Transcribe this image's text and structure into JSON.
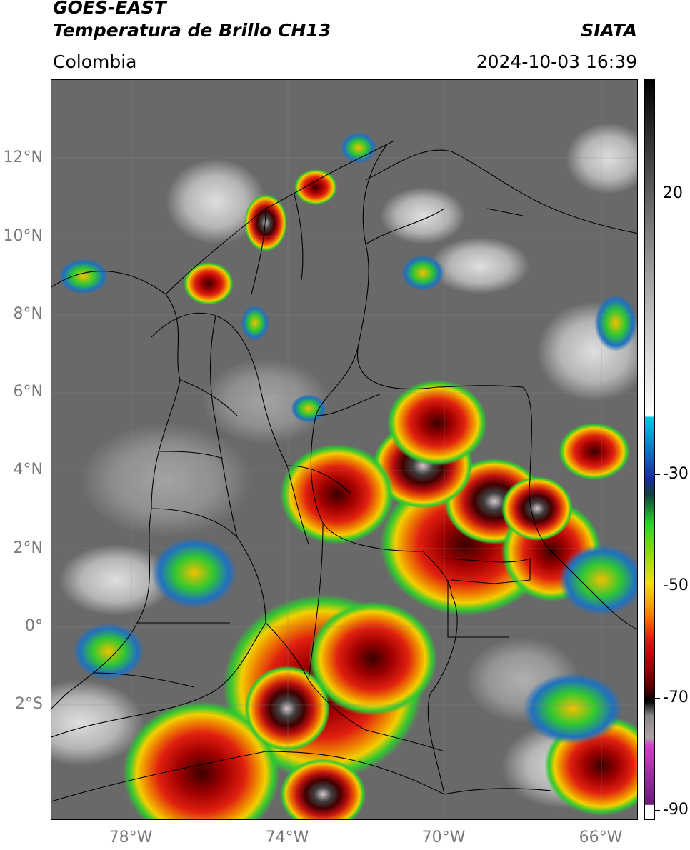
{
  "header": {
    "line1": "GOES-EAST",
    "line2": "Temperatura de Brillo CH13",
    "region": "Colombia",
    "source": "SIATA",
    "datetime": "2024-10-03 16:39"
  },
  "axes": {
    "lat_labels": [
      "12°N",
      "10°N",
      "8°N",
      "6°N",
      "4°N",
      "2°N",
      "0°",
      "2°S"
    ],
    "lon_labels": [
      "78°W",
      "74°W",
      "70°W",
      "66°W"
    ]
  },
  "colorbar": {
    "labels": [
      "20",
      "-30",
      "-50",
      "-70",
      "-90"
    ],
    "colors": {
      "black": "#000000",
      "gray_mid": "#7a7a7a",
      "white": "#ffffff",
      "cyan": "#00c8e6",
      "blue": "#1a2a9c",
      "green": "#2ad02a",
      "yellow": "#f2e000",
      "orange": "#f08a00",
      "red": "#e01010",
      "dark_red": "#5a0000",
      "magenta": "#d040c8",
      "purple": "#6a1a7a"
    }
  },
  "map": {
    "background": "#6b6b6b",
    "boundary_color": "#000000"
  }
}
